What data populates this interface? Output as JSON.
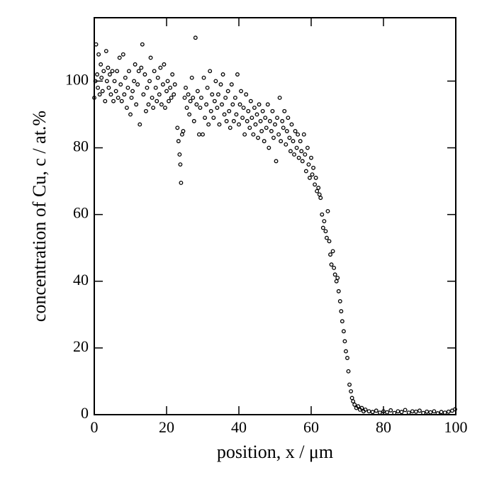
{
  "chart_data": {
    "type": "scatter",
    "xlabel": "position, x / μm",
    "ylabel": "concentration of Cu, c / at.%",
    "xlim": [
      0,
      100
    ],
    "ylim": [
      0,
      119
    ],
    "xticks": [
      0,
      20,
      40,
      60,
      80,
      100
    ],
    "yticks": [
      0,
      20,
      40,
      60,
      80,
      100
    ],
    "color": "#000000",
    "x": [
      0,
      0.3,
      0.5,
      0.8,
      1,
      1.2,
      1.5,
      1.8,
      2,
      2.3,
      2.6,
      3,
      3.3,
      3.5,
      3.8,
      4,
      4.3,
      4.6,
      5,
      5.3,
      5.6,
      6,
      6.3,
      6.6,
      7,
      7.3,
      7.6,
      8,
      8.3,
      8.6,
      9,
      9.3,
      9.6,
      10,
      10.3,
      10.6,
      11,
      11.3,
      11.6,
      12,
      12.3,
      12.6,
      13,
      13.3,
      13.6,
      14,
      14.3,
      14.6,
      15,
      15.3,
      15.6,
      16,
      16.3,
      16.6,
      17,
      17.3,
      17.6,
      18,
      18.3,
      18.6,
      19,
      19.3,
      19.6,
      20,
      20.3,
      20.6,
      21,
      21.3,
      21.6,
      22,
      22.3,
      23,
      23.3,
      23.6,
      23.8,
      24,
      24.3,
      24.6,
      25,
      25.3,
      25.6,
      26,
      26.3,
      26.6,
      27,
      27.3,
      27.6,
      28,
      28.3,
      28.6,
      29,
      29.3,
      29.6,
      30,
      30.3,
      30.6,
      31,
      31.3,
      31.6,
      32,
      32.3,
      32.6,
      33,
      33.3,
      33.6,
      34,
      34.3,
      34.6,
      35,
      35.3,
      35.6,
      36,
      36.3,
      36.6,
      37,
      37.3,
      37.6,
      38,
      38.3,
      38.6,
      39,
      39.3,
      39.6,
      40,
      40.3,
      40.6,
      41,
      41.3,
      41.6,
      42,
      42.3,
      42.6,
      43,
      43.3,
      43.6,
      44,
      44.3,
      44.6,
      45,
      45.3,
      45.6,
      46,
      46.3,
      46.6,
      47,
      47.3,
      47.6,
      48,
      48.3,
      48.6,
      49,
      49.3,
      49.6,
      50,
      50.3,
      50.6,
      51,
      51.3,
      51.6,
      52,
      52.3,
      52.6,
      53,
      53.3,
      53.6,
      54,
      54.3,
      54.6,
      55,
      55.3,
      55.6,
      56,
      56.3,
      56.6,
      57,
      57.3,
      57.6,
      58,
      58.3,
      58.6,
      59,
      59.3,
      59.6,
      60,
      60.3,
      60.6,
      61,
      61.3,
      61.6,
      62,
      62.3,
      62.6,
      63,
      63.3,
      63.6,
      64,
      64.3,
      64.6,
      65,
      65.3,
      65.6,
      66,
      66.3,
      66.6,
      67,
      67.3,
      67.6,
      68,
      68.3,
      68.6,
      69,
      69.3,
      69.6,
      70,
      70.3,
      70.6,
      71,
      71.3,
      71.6,
      72,
      72.5,
      73,
      73.5,
      74,
      74.5,
      75,
      76,
      77,
      78,
      79,
      80,
      81,
      82,
      83,
      84,
      85,
      86,
      87,
      88,
      89,
      90,
      91,
      92,
      93,
      94,
      95,
      96,
      97,
      98,
      99,
      99.8
    ],
    "values": [
      95,
      100,
      111,
      102,
      98,
      108,
      96,
      105,
      101,
      97,
      103,
      94,
      109,
      100,
      104,
      98,
      102,
      96,
      103,
      94,
      100,
      97,
      103,
      95,
      107,
      99,
      94,
      108,
      96,
      101,
      92,
      98,
      103,
      90,
      95,
      97,
      100,
      105,
      93,
      99,
      103,
      87,
      104,
      111,
      96,
      102,
      91,
      98,
      93,
      100,
      107,
      95,
      92,
      103,
      98,
      94,
      101,
      96,
      104,
      93,
      99,
      105,
      92,
      97,
      100,
      94,
      98,
      95,
      102,
      96,
      99,
      86,
      82,
      78,
      75,
      69.5,
      84,
      85,
      95,
      98,
      92,
      96,
      90,
      94,
      101,
      95,
      88,
      113,
      93,
      97,
      84,
      92,
      95,
      84,
      101,
      89,
      93,
      98,
      87,
      103,
      91,
      96,
      89,
      94,
      100,
      92,
      96,
      87,
      99,
      93,
      102,
      90,
      95,
      88,
      97,
      91,
      86,
      99,
      93,
      88,
      95,
      90,
      102,
      87,
      93,
      97,
      89,
      92,
      84,
      96,
      88,
      91,
      86,
      94,
      89,
      84,
      92,
      87,
      90,
      83,
      93,
      88,
      85,
      91,
      82,
      89,
      86,
      93,
      80,
      88,
      85,
      91,
      83,
      87,
      76,
      89,
      84,
      95,
      82,
      88,
      86,
      91,
      81,
      85,
      89,
      83,
      79,
      87,
      82,
      78,
      85,
      80,
      84,
      77,
      82,
      79,
      76,
      84,
      78,
      73,
      80,
      75,
      71,
      77,
      72,
      74,
      69,
      71,
      67,
      68,
      66,
      65,
      60,
      56,
      58,
      55,
      53,
      61,
      52,
      48,
      45,
      49,
      44,
      42,
      40,
      41,
      37,
      34,
      31,
      28,
      25,
      22,
      19,
      17,
      13,
      9,
      7,
      5,
      4,
      3,
      2,
      2.5,
      1.5,
      2,
      1,
      1.5,
      1,
      0.8,
      1.2,
      0.6,
      1,
      0.7,
      1.3,
      0.5,
      1,
      0.8,
      1.4,
      0.6,
      1,
      0.9,
      1.2,
      0.5,
      0.9,
      0.7,
      1,
      0.4,
      0.8,
      0.6,
      0.9,
      1.2,
      1.6
    ]
  }
}
